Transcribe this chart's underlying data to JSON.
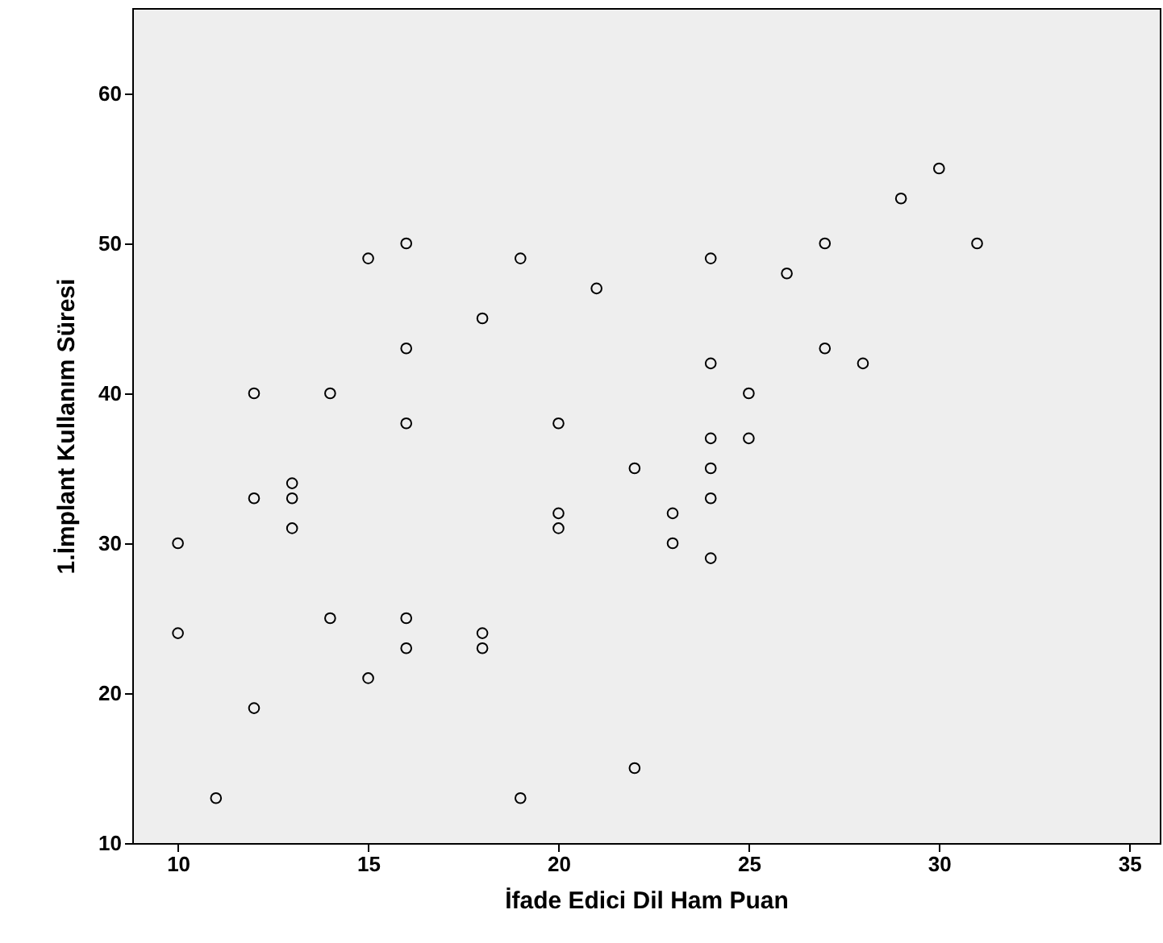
{
  "chart_data": {
    "type": "scatter",
    "xlabel": "İfade Edici Dil Ham Puan",
    "ylabel": "1.İmplant Kullanım Süresi",
    "marker": "circle",
    "grid": false,
    "x": [
      10,
      10,
      11,
      12,
      12,
      12,
      13,
      13,
      13,
      14,
      14,
      15,
      15,
      16,
      16,
      16,
      16,
      16,
      18,
      18,
      18,
      19,
      19,
      20,
      20,
      20,
      21,
      22,
      22,
      23,
      23,
      24,
      24,
      24,
      24,
      24,
      24,
      25,
      25,
      26,
      27,
      27,
      28,
      29,
      30,
      31
    ],
    "series": [
      {
        "color": "#000000",
        "values": [
          30,
          24,
          13,
          40,
          33,
          19,
          34,
          33,
          31,
          40,
          25,
          49,
          21,
          50,
          43,
          38,
          25,
          23,
          45,
          24,
          23,
          49,
          13,
          38,
          32,
          31,
          47,
          35,
          15,
          32,
          30,
          49,
          42,
          37,
          35,
          33,
          29,
          40,
          37,
          48,
          50,
          43,
          42,
          53,
          55,
          50
        ]
      }
    ],
    "xlim": [
      8.8,
      35.8
    ],
    "xticks": [
      10,
      15,
      20,
      25,
      30,
      35
    ],
    "ylim": [
      10,
      65.7
    ],
    "yticks": [
      10,
      20,
      30,
      40,
      50,
      60
    ]
  }
}
